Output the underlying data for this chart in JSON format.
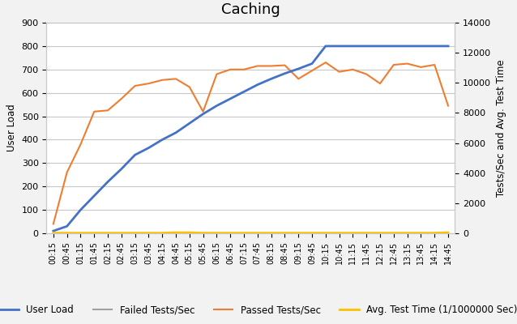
{
  "title": "Caching",
  "ylabel_left": "User Load",
  "ylabel_right": "Tests/Sec and Avg. Test Time",
  "ylim_left": [
    0,
    900
  ],
  "ylim_right": [
    0,
    14000
  ],
  "yticks_left": [
    0,
    100,
    200,
    300,
    400,
    500,
    600,
    700,
    800,
    900
  ],
  "yticks_right": [
    0,
    2000,
    4000,
    6000,
    8000,
    10000,
    12000,
    14000
  ],
  "x_labels": [
    "00:15",
    "00:45",
    "01:15",
    "01:45",
    "02:15",
    "02:45",
    "03:15",
    "03:45",
    "04:15",
    "04:45",
    "05:15",
    "05:45",
    "06:15",
    "06:45",
    "07:15",
    "07:45",
    "08:15",
    "08:45",
    "09:15",
    "09:45",
    "10:15",
    "10:45",
    "11:15",
    "11:45",
    "12:15",
    "12:45",
    "13:15",
    "13:45",
    "14:15",
    "14:45"
  ],
  "user_load": [
    10,
    30,
    100,
    160,
    220,
    275,
    335,
    365,
    400,
    430,
    470,
    510,
    545,
    575,
    605,
    635,
    660,
    683,
    703,
    725,
    800,
    800,
    800,
    800,
    800,
    800,
    800,
    800,
    800,
    800
  ],
  "failed_tests": [
    0,
    0,
    0,
    0,
    0,
    0,
    0,
    0,
    0,
    0,
    0,
    0,
    0,
    0,
    0,
    0,
    0,
    0,
    0,
    0,
    0,
    0,
    0,
    0,
    0,
    0,
    0,
    0,
    0,
    0
  ],
  "passed_tests_left": [
    40,
    260,
    380,
    520,
    525,
    575,
    630,
    640,
    655,
    660,
    625,
    520,
    680,
    700,
    700,
    715,
    715,
    718,
    660,
    695,
    730,
    690,
    700,
    680,
    640,
    720,
    725,
    710,
    720,
    545
  ],
  "avg_test_time_right": [
    20,
    20,
    20,
    20,
    20,
    20,
    20,
    20,
    20,
    50,
    50,
    20,
    20,
    20,
    20,
    20,
    20,
    20,
    20,
    20,
    20,
    20,
    20,
    20,
    20,
    20,
    20,
    20,
    20,
    50
  ],
  "color_user_load": "#4472c4",
  "color_failed": "#a0a0a0",
  "color_passed": "#ed7d31",
  "color_avg_time": "#ffc000",
  "background_color": "#f2f2f2",
  "plot_bg_color": "#ffffff",
  "grid_color": "#c8c8c8",
  "title_fontsize": 13,
  "legend_fontsize": 8.5,
  "axis_label_fontsize": 8.5,
  "tick_fontsize": 8
}
